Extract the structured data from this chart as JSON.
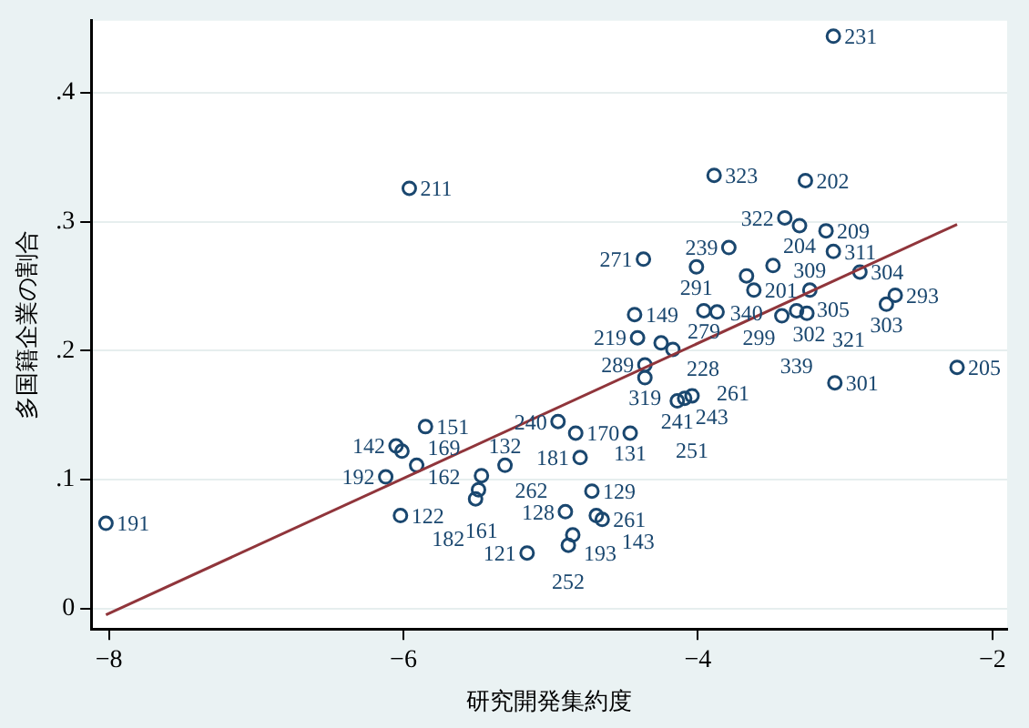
{
  "chart_data": {
    "type": "scatter",
    "xlabel": "研究開発集約度",
    "ylabel": "多国籍企業の割合",
    "xlim": [
      -8.12,
      -1.9
    ],
    "ylim": [
      -0.016,
      0.456
    ],
    "xticks": [
      -8,
      -6,
      -4,
      -2
    ],
    "yticks": [
      0,
      {
        "value": 0.1,
        "label": ".1"
      },
      {
        "value": 0.2,
        "label": ".2"
      },
      {
        "value": 0.3,
        "label": ".3"
      },
      {
        "value": 0.4,
        "label": ".4"
      }
    ],
    "grid": "y",
    "legend": false,
    "marker": "circle",
    "series": [
      {
        "type": "scatter",
        "color": "#1a476f",
        "x": [
          -3.08,
          -5.96,
          -3.89,
          -3.27,
          -3.41,
          -3.31,
          -3.13,
          -3.08,
          -3.79,
          -4.37,
          -4.01,
          -3.49,
          -3.67,
          -2.9,
          -3.62,
          -3.24,
          -2.66,
          -2.72,
          -4.43,
          -3.96,
          -3.87,
          -3.43,
          -3.33,
          -3.26,
          -4.41,
          -4.25,
          -4.17,
          -4.36,
          -4.36,
          -4.14,
          -4.09,
          -4.04,
          -3.07,
          -2.24,
          -4.95,
          -4.83,
          -4.46,
          -4.8,
          -4.72,
          -4.9,
          -4.69,
          -4.65,
          -4.85,
          -4.88,
          -5.16,
          -5.85,
          -6.05,
          -6.01,
          -5.91,
          -6.12,
          -6.02,
          -8.02,
          -5.47,
          -5.31,
          -5.49,
          -5.51
        ],
        "values": [
          0.444,
          0.326,
          0.336,
          0.332,
          0.303,
          0.297,
          0.293,
          0.277,
          0.28,
          0.271,
          0.265,
          0.266,
          0.258,
          0.261,
          0.247,
          0.247,
          0.243,
          0.236,
          0.228,
          0.231,
          0.23,
          0.227,
          0.231,
          0.229,
          0.21,
          0.206,
          0.201,
          0.189,
          0.179,
          0.161,
          0.163,
          0.165,
          0.175,
          0.187,
          0.145,
          0.136,
          0.136,
          0.117,
          0.091,
          0.075,
          0.072,
          0.069,
          0.057,
          0.049,
          0.043,
          0.141,
          0.126,
          0.122,
          0.111,
          0.102,
          0.072,
          0.066,
          0.103,
          0.111,
          0.092,
          0.085
        ]
      },
      {
        "type": "line",
        "marker": "none",
        "color": "#90353b",
        "x": [
          -8.02,
          -2.24
        ],
        "values": [
          -0.005,
          0.298
        ]
      }
    ],
    "annotations": [
      {
        "text": "231",
        "x": -3.08,
        "y": 0.444
      },
      {
        "text": "211",
        "x": -5.96,
        "y": 0.326
      },
      {
        "text": "323",
        "x": -3.89,
        "y": 0.336
      },
      {
        "text": "202",
        "x": -3.27,
        "y": 0.332
      },
      {
        "text": "322",
        "x": -3.41,
        "y": 0.303
      },
      {
        "text": "204",
        "x": -3.31,
        "y": 0.297
      },
      {
        "text": "209",
        "x": -3.13,
        "y": 0.293
      },
      {
        "text": "311",
        "x": -3.08,
        "y": 0.277
      },
      {
        "text": "239",
        "x": -3.79,
        "y": 0.28
      },
      {
        "text": "271",
        "x": -4.37,
        "y": 0.271
      },
      {
        "text": "291",
        "x": -4.01,
        "y": 0.265
      },
      {
        "text": "305",
        "x": -3.49,
        "y": 0.266
      },
      {
        "text": "340",
        "x": -3.67,
        "y": 0.258
      },
      {
        "text": "304",
        "x": -2.9,
        "y": 0.261
      },
      {
        "text": "201",
        "x": -3.62,
        "y": 0.247
      },
      {
        "text": "309",
        "x": -3.24,
        "y": 0.247
      },
      {
        "text": "293",
        "x": -2.66,
        "y": 0.243
      },
      {
        "text": "303",
        "x": -2.72,
        "y": 0.236
      },
      {
        "text": "149",
        "x": -4.43,
        "y": 0.228
      },
      {
        "text": "279",
        "x": -3.96,
        "y": 0.231
      },
      {
        "text": "299",
        "x": -3.87,
        "y": 0.23
      },
      {
        "text": "302",
        "x": -3.43,
        "y": 0.227
      },
      {
        "text": "339",
        "x": -3.33,
        "y": 0.231
      },
      {
        "text": "321",
        "x": -3.26,
        "y": 0.229
      },
      {
        "text": "219",
        "x": -4.41,
        "y": 0.21
      },
      {
        "text": "228",
        "x": -4.25,
        "y": 0.206
      },
      {
        "text": "261",
        "x": -4.17,
        "y": 0.201
      },
      {
        "text": "289",
        "x": -4.36,
        "y": 0.189
      },
      {
        "text": "319",
        "x": -4.36,
        "y": 0.179
      },
      {
        "text": "241",
        "x": -4.14,
        "y": 0.161
      },
      {
        "text": "243",
        "x": -4.09,
        "y": 0.163
      },
      {
        "text": "251",
        "x": -4.04,
        "y": 0.165
      },
      {
        "text": "301",
        "x": -3.07,
        "y": 0.175
      },
      {
        "text": "205",
        "x": -2.24,
        "y": 0.187
      },
      {
        "text": "240",
        "x": -4.95,
        "y": 0.145
      },
      {
        "text": "170",
        "x": -4.83,
        "y": 0.136
      },
      {
        "text": "131",
        "x": -4.46,
        "y": 0.136
      },
      {
        "text": "181",
        "x": -4.8,
        "y": 0.117
      },
      {
        "text": "129",
        "x": -4.72,
        "y": 0.091
      },
      {
        "text": "128",
        "x": -4.9,
        "y": 0.075
      },
      {
        "text": "143",
        "x": -4.69,
        "y": 0.072
      },
      {
        "text": "261",
        "x": -4.65,
        "y": 0.069
      },
      {
        "text": "193",
        "x": -4.85,
        "y": 0.057
      },
      {
        "text": "252",
        "x": -4.88,
        "y": 0.049
      },
      {
        "text": "121",
        "x": -5.16,
        "y": 0.043
      },
      {
        "text": "151",
        "x": -5.85,
        "y": 0.141
      },
      {
        "text": "142",
        "x": -6.05,
        "y": 0.126
      },
      {
        "text": "162",
        "x": -6.01,
        "y": 0.122
      },
      {
        "text": "169",
        "x": -5.91,
        "y": 0.111
      },
      {
        "text": "192",
        "x": -6.12,
        "y": 0.102
      },
      {
        "text": "122",
        "x": -6.02,
        "y": 0.072
      },
      {
        "text": "191",
        "x": -8.02,
        "y": 0.066
      },
      {
        "text": "161",
        "x": -5.47,
        "y": 0.103
      },
      {
        "text": "132",
        "x": -5.31,
        "y": 0.111
      },
      {
        "text": "262",
        "x": -5.49,
        "y": 0.092
      },
      {
        "text": "182",
        "x": -5.51,
        "y": 0.085
      }
    ]
  }
}
